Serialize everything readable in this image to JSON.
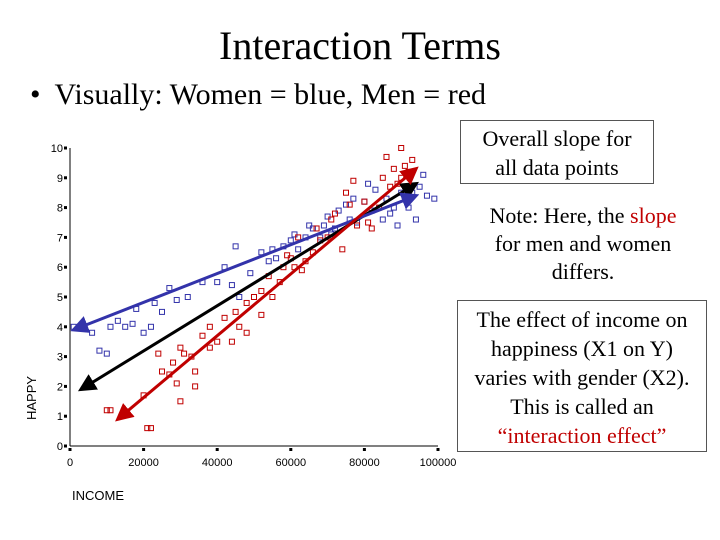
{
  "title": "Interaction Terms",
  "bullet": {
    "symbol": "•",
    "text": "Visually:  Women = blue, Men = red"
  },
  "box_overall": {
    "line1": "Overall slope for",
    "line2": "all data points"
  },
  "box_note": {
    "part1": "Note:  Here, the ",
    "highlight": "slope",
    "part2": "for men and women",
    "part3": "differs."
  },
  "box_effect": {
    "line1": "The effect of income on",
    "line2": "happiness (X1 on Y)",
    "line3": "varies with gender (X2).",
    "line4": "This is called an",
    "line5": "“interaction effect”"
  },
  "chart_data": {
    "type": "scatter",
    "xlabel": "INCOME",
    "ylabel": "HAPPY",
    "xlim": [
      0,
      100000
    ],
    "ylim": [
      0,
      10
    ],
    "xticks": [
      "0",
      "20000",
      "40000",
      "60000",
      "80000",
      "100000"
    ],
    "yticks": [
      "0",
      "1",
      "2",
      "3",
      "4",
      "5",
      "6",
      "7",
      "8",
      "9",
      "10"
    ],
    "colors": {
      "women": "#3333aa",
      "men": "#c00000",
      "overall": "#000000"
    },
    "series": [
      {
        "name": "Women",
        "color": "#3333aa",
        "points": [
          [
            1000,
            4.0
          ],
          [
            6000,
            3.8
          ],
          [
            8000,
            3.2
          ],
          [
            10000,
            3.1
          ],
          [
            11000,
            4.0
          ],
          [
            13000,
            4.2
          ],
          [
            15000,
            4.0
          ],
          [
            17000,
            4.1
          ],
          [
            18000,
            4.6
          ],
          [
            20000,
            3.8
          ],
          [
            22000,
            4.0
          ],
          [
            23000,
            4.8
          ],
          [
            25000,
            4.5
          ],
          [
            27000,
            5.3
          ],
          [
            29000,
            4.9
          ],
          [
            32000,
            5.0
          ],
          [
            36000,
            5.5
          ],
          [
            40000,
            5.5
          ],
          [
            42000,
            6.0
          ],
          [
            44000,
            5.4
          ],
          [
            45000,
            6.7
          ],
          [
            46000,
            5.0
          ],
          [
            49000,
            5.8
          ],
          [
            52000,
            6.5
          ],
          [
            54000,
            6.2
          ],
          [
            55000,
            6.6
          ],
          [
            56000,
            6.3
          ],
          [
            58000,
            6.7
          ],
          [
            60000,
            6.9
          ],
          [
            61000,
            7.1
          ],
          [
            62000,
            6.6
          ],
          [
            64000,
            7.0
          ],
          [
            65000,
            7.4
          ],
          [
            66000,
            7.3
          ],
          [
            68000,
            7.0
          ],
          [
            69000,
            7.4
          ],
          [
            70000,
            7.7
          ],
          [
            71000,
            7.1
          ],
          [
            72000,
            7.3
          ],
          [
            73000,
            7.9
          ],
          [
            75000,
            8.1
          ],
          [
            76000,
            7.6
          ],
          [
            77000,
            8.3
          ],
          [
            78000,
            7.5
          ],
          [
            80000,
            8.2
          ],
          [
            81000,
            8.8
          ],
          [
            82000,
            7.9
          ],
          [
            83000,
            8.6
          ],
          [
            85000,
            7.6
          ],
          [
            86000,
            8.3
          ],
          [
            87000,
            7.8
          ],
          [
            88000,
            8.0
          ],
          [
            89000,
            7.4
          ],
          [
            90000,
            8.5
          ],
          [
            92000,
            8.0
          ],
          [
            93000,
            8.5
          ],
          [
            94000,
            7.6
          ],
          [
            95000,
            8.7
          ],
          [
            96000,
            9.1
          ],
          [
            97000,
            8.4
          ],
          [
            99000,
            8.3
          ]
        ]
      },
      {
        "name": "Men",
        "color": "#c00000",
        "points": [
          [
            10000,
            1.2
          ],
          [
            11000,
            1.2
          ],
          [
            21000,
            0.6
          ],
          [
            22000,
            0.6
          ],
          [
            20000,
            1.7
          ],
          [
            24000,
            3.1
          ],
          [
            25000,
            2.5
          ],
          [
            27000,
            2.4
          ],
          [
            28000,
            2.8
          ],
          [
            29000,
            2.1
          ],
          [
            30000,
            1.5
          ],
          [
            31000,
            3.1
          ],
          [
            30000,
            3.3
          ],
          [
            33000,
            3.0
          ],
          [
            34000,
            2.5
          ],
          [
            34000,
            2.0
          ],
          [
            36000,
            3.7
          ],
          [
            38000,
            3.3
          ],
          [
            38000,
            4.0
          ],
          [
            40000,
            3.5
          ],
          [
            42000,
            4.3
          ],
          [
            44000,
            3.5
          ],
          [
            45000,
            4.5
          ],
          [
            46000,
            4.0
          ],
          [
            48000,
            4.8
          ],
          [
            48000,
            3.8
          ],
          [
            50000,
            5.0
          ],
          [
            52000,
            4.4
          ],
          [
            52000,
            5.2
          ],
          [
            54000,
            5.7
          ],
          [
            55000,
            5.0
          ],
          [
            57000,
            5.5
          ],
          [
            58000,
            6.0
          ],
          [
            59000,
            6.4
          ],
          [
            60000,
            6.3
          ],
          [
            61000,
            6.0
          ],
          [
            62000,
            7.0
          ],
          [
            63000,
            5.9
          ],
          [
            64000,
            6.2
          ],
          [
            66000,
            6.5
          ],
          [
            67000,
            7.3
          ],
          [
            68000,
            6.9
          ],
          [
            70000,
            7.0
          ],
          [
            71000,
            7.6
          ],
          [
            72000,
            7.8
          ],
          [
            74000,
            6.6
          ],
          [
            75000,
            8.5
          ],
          [
            76000,
            8.1
          ],
          [
            77000,
            8.9
          ],
          [
            78000,
            7.4
          ],
          [
            80000,
            8.2
          ],
          [
            81000,
            7.5
          ],
          [
            82000,
            7.3
          ],
          [
            84000,
            8.0
          ],
          [
            85000,
            9.0
          ],
          [
            86000,
            9.7
          ],
          [
            87000,
            8.7
          ],
          [
            88000,
            9.3
          ],
          [
            89000,
            8.8
          ],
          [
            90000,
            9.0
          ],
          [
            90000,
            10.0
          ],
          [
            91000,
            9.4
          ],
          [
            92000,
            9.2
          ],
          [
            93000,
            9.6
          ]
        ]
      }
    ],
    "fit_lines": [
      {
        "name": "Overall",
        "color": "#000000",
        "from": [
          3000,
          1.9
        ],
        "to": [
          94000,
          8.8
        ]
      },
      {
        "name": "Women",
        "color": "#3333aa",
        "from": [
          1000,
          3.9
        ],
        "to": [
          94000,
          8.4
        ]
      },
      {
        "name": "Men",
        "color": "#c00000",
        "from": [
          13000,
          0.9
        ],
        "to": [
          94000,
          9.3
        ]
      }
    ]
  }
}
